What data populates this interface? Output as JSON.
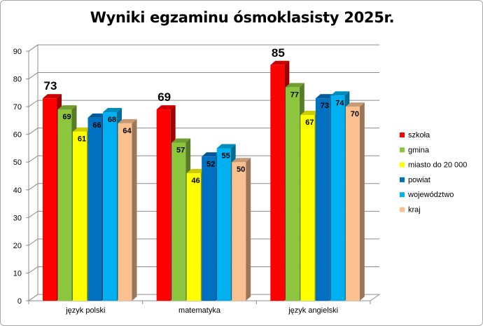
{
  "chart_data": {
    "type": "bar",
    "title": "Wyniki egzaminu ósmoklasisty 2025r.",
    "categories": [
      "język polski",
      "matematyka",
      "język angielski"
    ],
    "series": [
      {
        "name": "szkoła",
        "values": [
          73,
          69,
          85
        ],
        "color": "#ff0000"
      },
      {
        "name": "gmina",
        "values": [
          69,
          57,
          77
        ],
        "color": "#8cc63f"
      },
      {
        "name": "miasto do 20 000",
        "values": [
          61,
          46,
          67
        ],
        "color": "#ffff00"
      },
      {
        "name": "powiat",
        "values": [
          66,
          52,
          73
        ],
        "color": "#0070c0"
      },
      {
        "name": "województwo",
        "values": [
          68,
          55,
          74
        ],
        "color": "#00b0f0"
      },
      {
        "name": "kraj",
        "values": [
          64,
          50,
          70
        ],
        "color": "#fac090"
      }
    ],
    "ylim": [
      0,
      90
    ],
    "yticks": [
      0,
      10,
      20,
      30,
      40,
      50,
      60,
      70,
      80,
      90
    ],
    "grid": true,
    "legend": "right",
    "three_d": true
  }
}
